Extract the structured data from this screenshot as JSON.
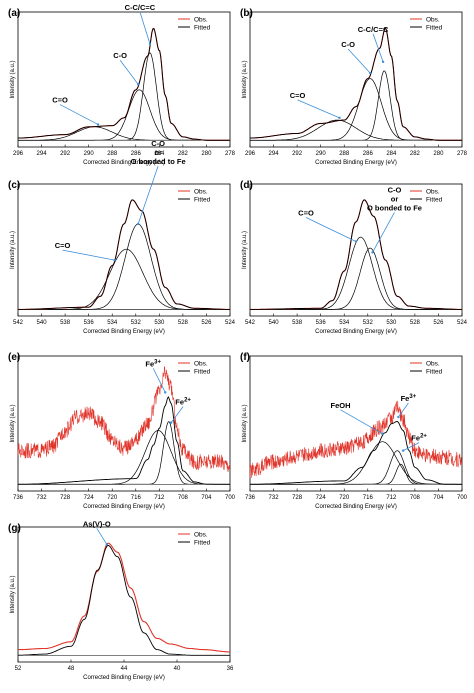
{
  "chart_data": [
    {
      "panel": "(a)",
      "type": "line",
      "ylabel": "Intensity (a.u.)",
      "xlabel": "Corrected Binding Energy (eV)",
      "xlim": [
        296,
        278
      ],
      "x_ticks": [
        296,
        294,
        292,
        290,
        288,
        286,
        284,
        282,
        280,
        278
      ],
      "ylim": [
        0,
        1
      ],
      "legend": {
        "placement": "top-right",
        "items": [
          {
            "name": "Obs.",
            "color": "#e0342a"
          },
          {
            "name": "Fitted",
            "color": "#000000"
          }
        ]
      },
      "series": [
        {
          "name": "Obs.",
          "color": "#e0342a",
          "kind": "observed",
          "x": [
            296,
            292,
            290,
            288,
            287,
            286,
            285,
            284.5,
            284,
            283.5,
            283,
            282,
            281,
            280
          ],
          "values": [
            0.02,
            0.05,
            0.12,
            0.13,
            0.2,
            0.45,
            0.75,
            1.0,
            0.8,
            0.4,
            0.15,
            0.03,
            0.01,
            0.0
          ]
        },
        {
          "name": "Fitted",
          "color": "#000000",
          "kind": "envelope",
          "x": [
            296,
            292,
            290,
            288,
            287,
            286,
            285,
            284.5,
            284,
            283.5,
            283,
            282,
            281,
            280
          ],
          "values": [
            0.02,
            0.05,
            0.12,
            0.13,
            0.2,
            0.45,
            0.75,
            1.0,
            0.8,
            0.4,
            0.15,
            0.03,
            0.01,
            0.0
          ]
        },
        {
          "name": "C=O",
          "color": "#000000",
          "kind": "component",
          "center": 289.5,
          "amplitude": 0.12,
          "sigma": 1.5
        },
        {
          "name": "C-O",
          "color": "#000000",
          "kind": "component",
          "center": 285.7,
          "amplitude": 0.45,
          "sigma": 0.9
        },
        {
          "name": "C-C/C=C",
          "color": "#000000",
          "kind": "component",
          "center": 284.8,
          "amplitude": 0.78,
          "sigma": 0.55
        }
      ],
      "annotations": [
        {
          "text": "C=O",
          "target_x": 289.2,
          "target_y": 0.14
        },
        {
          "text": "C-O",
          "target_x": 285.8,
          "target_y": 0.5
        },
        {
          "text": "C-C/C=C",
          "target_x": 284.8,
          "target_y": 0.86
        }
      ]
    },
    {
      "panel": "(b)",
      "type": "line",
      "ylabel": "Intensity (a.u.)",
      "xlabel": "Corrected Binding Energy (eV)",
      "xlim": [
        296,
        278
      ],
      "x_ticks": [
        296,
        294,
        292,
        290,
        288,
        286,
        284,
        282,
        280,
        278
      ],
      "ylim": [
        0,
        1
      ],
      "legend": {
        "placement": "top-right",
        "items": [
          {
            "name": "Obs.",
            "color": "#e0342a"
          },
          {
            "name": "Fitted",
            "color": "#000000"
          }
        ]
      },
      "series": [
        {
          "name": "Obs.",
          "color": "#e0342a",
          "kind": "observed",
          "x": [
            296,
            292,
            290,
            288,
            287,
            286,
            285,
            284.5,
            284,
            283.5,
            283,
            282,
            281,
            280
          ],
          "values": [
            0.02,
            0.06,
            0.15,
            0.18,
            0.3,
            0.55,
            0.82,
            1.0,
            0.75,
            0.35,
            0.12,
            0.03,
            0.01,
            0.0
          ]
        },
        {
          "name": "Fitted",
          "color": "#000000",
          "kind": "envelope",
          "x": [
            296,
            292,
            290,
            288,
            287,
            286,
            285,
            284.5,
            284,
            283.5,
            283,
            282,
            281,
            280
          ],
          "values": [
            0.02,
            0.06,
            0.15,
            0.18,
            0.3,
            0.55,
            0.82,
            1.0,
            0.75,
            0.35,
            0.12,
            0.03,
            0.01,
            0.0
          ]
        },
        {
          "name": "C=O",
          "color": "#000000",
          "kind": "component",
          "center": 288.6,
          "amplitude": 0.18,
          "sigma": 1.6
        },
        {
          "name": "C-O",
          "color": "#000000",
          "kind": "component",
          "center": 285.8,
          "amplitude": 0.55,
          "sigma": 0.95
        },
        {
          "name": "C-C/C=C",
          "color": "#000000",
          "kind": "component",
          "center": 284.6,
          "amplitude": 0.62,
          "sigma": 0.5
        }
      ],
      "annotations": [
        {
          "text": "C=O",
          "target_x": 288.4,
          "target_y": 0.2
        },
        {
          "text": "C-O",
          "target_x": 285.8,
          "target_y": 0.6
        },
        {
          "text": "C-C/C=C",
          "target_x": 284.7,
          "target_y": 0.7
        }
      ]
    },
    {
      "panel": "(c)",
      "type": "line",
      "ylabel": "Intensity (a.u.)",
      "xlabel": "Corrected Binding Energy (eV)",
      "xlim": [
        542,
        524
      ],
      "x_ticks": [
        542,
        540,
        538,
        536,
        534,
        532,
        530,
        528,
        526,
        524
      ],
      "ylim": [
        0,
        1
      ],
      "legend": {
        "placement": "top-right",
        "items": [
          {
            "name": "Obs.",
            "color": "#e0342a"
          },
          {
            "name": "Fitted",
            "color": "#000000"
          }
        ]
      },
      "series": [
        {
          "name": "Obs.",
          "color": "#e0342a",
          "kind": "observed",
          "x": [
            542,
            536,
            535,
            534,
            533,
            532.3,
            531.5,
            530.5,
            529.5,
            528.5,
            527,
            524
          ],
          "values": [
            0.0,
            0.02,
            0.12,
            0.4,
            0.78,
            1.0,
            0.9,
            0.55,
            0.2,
            0.05,
            0.01,
            0.0
          ]
        },
        {
          "name": "Fitted",
          "color": "#000000",
          "kind": "envelope",
          "x": [
            542,
            536,
            535,
            534,
            533,
            532.3,
            531.5,
            530.5,
            529.5,
            528.5,
            527,
            524
          ],
          "values": [
            0.0,
            0.02,
            0.12,
            0.4,
            0.78,
            1.0,
            0.9,
            0.55,
            0.2,
            0.05,
            0.01,
            0.0
          ]
        },
        {
          "name": "C=O",
          "color": "#000000",
          "kind": "component",
          "center": 532.8,
          "amplitude": 0.55,
          "sigma": 1.4
        },
        {
          "name": "C-O or O bonded to Fe",
          "color": "#000000",
          "kind": "component",
          "center": 531.8,
          "amplitude": 0.78,
          "sigma": 1.1
        }
      ],
      "annotations": [
        {
          "text": "C=O",
          "target_x": 533.8,
          "target_y": 0.45
        },
        {
          "text": [
            "C-O",
            "or",
            "O bonded to Fe"
          ],
          "target_x": 531.8,
          "target_y": 0.78
        }
      ]
    },
    {
      "panel": "(d)",
      "type": "line",
      "ylabel": "Intensity (a.u.)",
      "xlabel": "Corrected Binding Energy (eV)",
      "xlim": [
        542,
        524
      ],
      "x_ticks": [
        542,
        540,
        538,
        536,
        534,
        532,
        530,
        528,
        526,
        524
      ],
      "ylim": [
        0,
        1
      ],
      "legend": {
        "placement": "top-right",
        "items": [
          {
            "name": "Obs.",
            "color": "#e0342a"
          },
          {
            "name": "Fitted",
            "color": "#000000"
          }
        ]
      },
      "series": [
        {
          "name": "Obs.",
          "color": "#e0342a",
          "kind": "observed",
          "x": [
            542,
            536,
            535,
            534,
            533,
            532.3,
            531.5,
            530.5,
            529.5,
            528.5,
            527,
            524
          ],
          "values": [
            0.0,
            0.01,
            0.08,
            0.35,
            0.8,
            1.0,
            0.85,
            0.45,
            0.12,
            0.03,
            0.01,
            0.0
          ]
        },
        {
          "name": "Fitted",
          "color": "#000000",
          "kind": "envelope",
          "x": [
            542,
            536,
            535,
            534,
            533,
            532.3,
            531.5,
            530.5,
            529.5,
            528.5,
            527,
            524
          ],
          "values": [
            0.0,
            0.01,
            0.08,
            0.35,
            0.8,
            1.0,
            0.85,
            0.45,
            0.12,
            0.03,
            0.01,
            0.0
          ]
        },
        {
          "name": "C=O",
          "color": "#000000",
          "kind": "component",
          "center": 532.6,
          "amplitude": 0.66,
          "sigma": 1.0
        },
        {
          "name": "C-O or O bonded to Fe",
          "color": "#000000",
          "kind": "component",
          "center": 531.8,
          "amplitude": 0.56,
          "sigma": 0.85
        }
      ],
      "annotations": [
        {
          "text": "C=O",
          "target_x": 533.0,
          "target_y": 0.62
        },
        {
          "text": [
            "C-O",
            "or",
            "O bonded to Fe"
          ],
          "target_x": 531.6,
          "target_y": 0.52
        }
      ]
    },
    {
      "panel": "(e)",
      "type": "line",
      "ylabel": "Intensity (a.u.)",
      "xlabel": "Corrected Binding Energy (eV)",
      "xlim": [
        736,
        700
      ],
      "x_ticks": [
        736,
        732,
        728,
        724,
        720,
        716,
        712,
        708,
        704,
        700
      ],
      "ylim": [
        0,
        1
      ],
      "legend": {
        "placement": "top-right",
        "items": [
          {
            "name": "Obs.",
            "color": "#e0342a"
          },
          {
            "name": "Fitted",
            "color": "#000000"
          }
        ]
      },
      "series": [
        {
          "name": "Obs.",
          "color": "#e0342a",
          "kind": "observed",
          "noisy": true,
          "x": [
            736,
            732,
            730,
            728,
            726,
            724,
            722,
            720,
            718,
            716,
            714,
            712,
            711,
            710,
            709,
            708,
            706,
            704,
            702,
            700
          ],
          "values": [
            0.3,
            0.3,
            0.34,
            0.48,
            0.6,
            0.63,
            0.55,
            0.4,
            0.32,
            0.4,
            0.55,
            0.82,
            1.0,
            0.86,
            0.5,
            0.3,
            0.2,
            0.2,
            0.2,
            0.18
          ]
        },
        {
          "name": "Fitted",
          "color": "#000000",
          "kind": "envelope",
          "x": [
            736,
            716,
            714,
            713,
            712,
            711,
            710.5,
            710,
            709,
            708,
            706,
            704,
            700
          ],
          "values": [
            0.0,
            0.05,
            0.22,
            0.35,
            0.5,
            0.7,
            0.78,
            0.72,
            0.38,
            0.12,
            0.02,
            0.0,
            0.0
          ]
        },
        {
          "name": "Fe3+",
          "color": "#000000",
          "kind": "component",
          "center": 712.2,
          "amplitude": 0.48,
          "sigma": 2.2
        },
        {
          "name": "Fe2+",
          "color": "#000000",
          "kind": "component",
          "center": 710.4,
          "amplitude": 0.56,
          "sigma": 0.9
        }
      ],
      "annotations": [
        {
          "text": "Fe3+",
          "target_x": 711.0,
          "target_y": 0.82
        },
        {
          "text": "Fe2+",
          "target_x": 710.0,
          "target_y": 0.55
        }
      ]
    },
    {
      "panel": "(f)",
      "type": "line",
      "ylabel": "Intensity (a.u.)",
      "xlabel": "Corrected Binding Energy (eV)",
      "xlim": [
        736,
        700
      ],
      "x_ticks": [
        736,
        732,
        728,
        724,
        720,
        716,
        712,
        708,
        704,
        700
      ],
      "ylim": [
        0,
        1
      ],
      "legend": {
        "placement": "top-right",
        "items": [
          {
            "name": "Obs.",
            "color": "#e0342a"
          },
          {
            "name": "Fitted",
            "color": "#000000"
          }
        ]
      },
      "series": [
        {
          "name": "Obs.",
          "color": "#e0342a",
          "kind": "observed",
          "noisy": true,
          "x": [
            736,
            732,
            728,
            724,
            720,
            717,
            714,
            712,
            711,
            710,
            709,
            708,
            706,
            704,
            700
          ],
          "values": [
            0.12,
            0.2,
            0.25,
            0.3,
            0.32,
            0.38,
            0.5,
            0.6,
            0.68,
            0.58,
            0.42,
            0.3,
            0.25,
            0.25,
            0.22
          ]
        },
        {
          "name": "Fitted",
          "color": "#000000",
          "kind": "envelope",
          "x": [
            736,
            720,
            717,
            715,
            713,
            712,
            711,
            710,
            709,
            708,
            706,
            703,
            700
          ],
          "values": [
            0.0,
            0.03,
            0.15,
            0.3,
            0.46,
            0.54,
            0.56,
            0.48,
            0.3,
            0.15,
            0.04,
            0.0,
            0.0
          ]
        },
        {
          "name": "FeOH",
          "color": "#000000",
          "kind": "component",
          "center": 713.5,
          "amplitude": 0.38,
          "sigma": 2.4
        },
        {
          "name": "Fe3+",
          "color": "#000000",
          "kind": "component",
          "center": 711.0,
          "amplitude": 0.3,
          "sigma": 1.2
        },
        {
          "name": "Fe2+",
          "color": "#000000",
          "kind": "component",
          "center": 710.4,
          "amplitude": 0.18,
          "sigma": 0.8
        }
      ],
      "annotations": [
        {
          "text": "FeOH",
          "target_x": 713.5,
          "target_y": 0.45
        },
        {
          "text": "Fe3+",
          "target_x": 710.8,
          "target_y": 0.6
        },
        {
          "text": "Fe2+",
          "target_x": 710.0,
          "target_y": 0.3
        }
      ]
    },
    {
      "panel": "(g)",
      "type": "line",
      "ylabel": "Intensity (a.u.)",
      "xlabel": "Corrected Binding Energy (eV)",
      "xlim": [
        52,
        36
      ],
      "x_ticks": [
        52,
        48,
        44,
        40,
        36
      ],
      "ylim": [
        0,
        1
      ],
      "legend": {
        "placement": "top-right",
        "items": [
          {
            "name": "Obs.",
            "color": "#e0342a"
          },
          {
            "name": "Fitted",
            "color": "#000000"
          }
        ]
      },
      "series": [
        {
          "name": "Obs.",
          "color": "#e0342a",
          "kind": "observed",
          "x": [
            52,
            50,
            48,
            47,
            46,
            45.2,
            44.5,
            43.5,
            42.5,
            41.5,
            40.5,
            39,
            38,
            36
          ],
          "values": [
            0.05,
            0.06,
            0.12,
            0.35,
            0.75,
            1.0,
            0.92,
            0.6,
            0.3,
            0.15,
            0.1,
            0.06,
            0.05,
            0.03
          ]
        },
        {
          "name": "Fitted",
          "color": "#000000",
          "kind": "envelope",
          "x": [
            52,
            50,
            48,
            47,
            46,
            45.2,
            44.5,
            43.5,
            42.5,
            41.5,
            40.5,
            39,
            36
          ],
          "values": [
            0.0,
            0.01,
            0.08,
            0.32,
            0.76,
            0.98,
            0.88,
            0.52,
            0.2,
            0.05,
            0.01,
            0.0,
            0.0
          ]
        }
      ],
      "annotations": [
        {
          "text": "As(V)-O",
          "target_x": 45.3,
          "target_y": 0.99
        }
      ]
    }
  ]
}
